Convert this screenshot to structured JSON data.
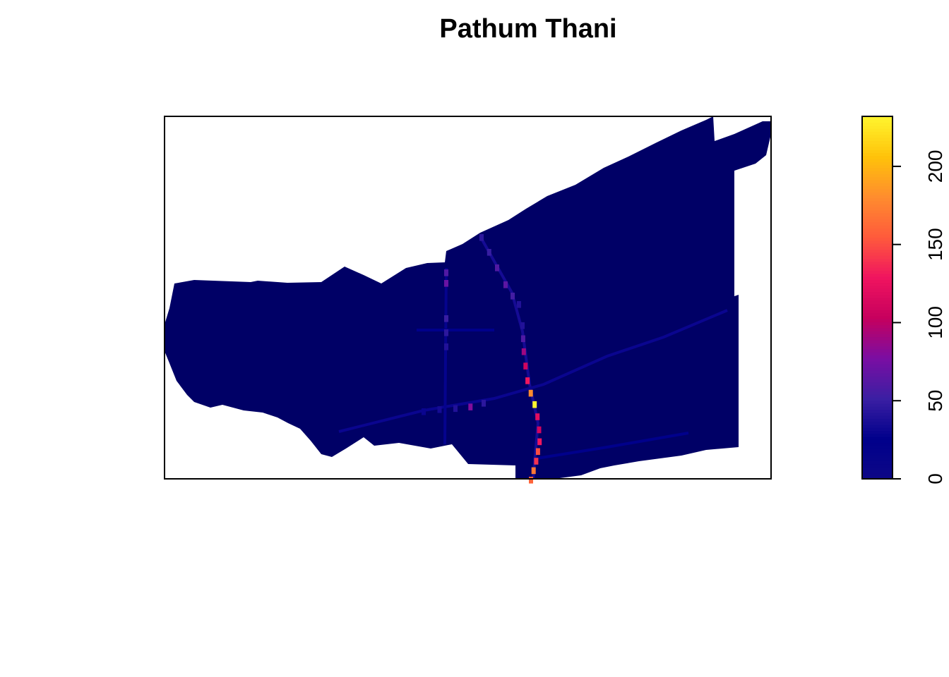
{
  "chart_data": {
    "type": "heatmap",
    "title": "Pathum Thani",
    "xlabel": "",
    "ylabel": "",
    "axes_shown": false,
    "legend": {
      "placement": "right",
      "type": "continuous-colorbar",
      "range": [
        0,
        232
      ],
      "ticks": [
        0,
        50,
        100,
        150,
        200
      ],
      "tick_labels": [
        "0",
        "50",
        "100",
        "150",
        "200"
      ],
      "palette": [
        "#0D0887",
        "#00008B",
        "#3B1FA3",
        "#7A0EA3",
        "#C6005E",
        "#F0145F",
        "#FF5A3C",
        "#FF8C2E",
        "#FFC20A",
        "#FFF52E"
      ]
    },
    "na_color": "#FFFFFF",
    "background_value_color": "#000066",
    "raster": {
      "description_of_values": "mostly near 0 (dark navy) with linear features of higher values",
      "dominant_value": 5,
      "max_value": 232,
      "hotspot_values": [
        {
          "feature": "north-south line",
          "values": [
            40,
            60,
            90,
            110,
            130,
            180,
            232,
            120,
            110,
            130,
            150,
            140,
            170,
            160
          ]
        },
        {
          "feature": "diagonal line from top-center",
          "values": [
            45,
            50,
            60,
            65,
            55,
            40
          ]
        },
        {
          "feature": "west-east line",
          "values": [
            30,
            35,
            40,
            80,
            45
          ]
        },
        {
          "feature": "vertical line left-center",
          "values": [
            60,
            70,
            50,
            45,
            40
          ]
        }
      ]
    }
  }
}
